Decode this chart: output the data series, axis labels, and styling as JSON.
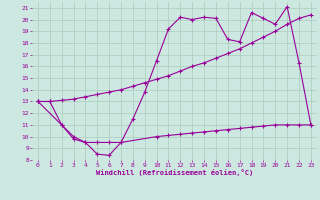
{
  "bg_color": "#cce8e0",
  "grid_color": "#aaccbb",
  "line_color": "#990099",
  "xlabel": "Windchill (Refroidissement éolien,°C)",
  "xlim": [
    -0.5,
    23.5
  ],
  "ylim": [
    8,
    21.5
  ],
  "xticks": [
    0,
    1,
    2,
    3,
    4,
    5,
    6,
    7,
    8,
    9,
    10,
    11,
    12,
    13,
    14,
    15,
    16,
    17,
    18,
    19,
    20,
    21,
    22,
    23
  ],
  "yticks": [
    8,
    9,
    10,
    11,
    12,
    13,
    14,
    15,
    16,
    17,
    18,
    19,
    20,
    21
  ],
  "line1_x": [
    0,
    1,
    2,
    3,
    4,
    5,
    6,
    7,
    8,
    9,
    10,
    11,
    12,
    13,
    14,
    15,
    16,
    17,
    18,
    19,
    20,
    21,
    22,
    23
  ],
  "line1_y": [
    13.0,
    13.0,
    13.1,
    13.2,
    13.4,
    13.6,
    13.8,
    14.0,
    14.3,
    14.6,
    14.9,
    15.2,
    15.6,
    16.0,
    16.3,
    16.7,
    17.1,
    17.5,
    18.0,
    18.5,
    19.0,
    19.6,
    20.1,
    20.4
  ],
  "line2_x": [
    0,
    1,
    2,
    3,
    4,
    5,
    6,
    7,
    8,
    9,
    10,
    11,
    12,
    13,
    14,
    15,
    16,
    17,
    18,
    19,
    20,
    21,
    22,
    23
  ],
  "line2_y": [
    13.0,
    13.0,
    11.0,
    9.8,
    9.5,
    8.5,
    8.4,
    9.5,
    11.5,
    13.8,
    16.5,
    19.2,
    20.2,
    20.0,
    20.2,
    20.1,
    18.3,
    18.1,
    20.6,
    20.1,
    19.6,
    21.1,
    16.3,
    11.0
  ],
  "line3_x": [
    0,
    2,
    3,
    4,
    5,
    6,
    7,
    10,
    11,
    12,
    13,
    14,
    15,
    16,
    17,
    18,
    19,
    20,
    21,
    22,
    23
  ],
  "line3_y": [
    13.0,
    11.0,
    10.0,
    9.5,
    9.5,
    9.5,
    9.5,
    10.0,
    10.1,
    10.2,
    10.3,
    10.4,
    10.5,
    10.6,
    10.7,
    10.8,
    10.9,
    11.0,
    11.0,
    11.0,
    11.0
  ]
}
